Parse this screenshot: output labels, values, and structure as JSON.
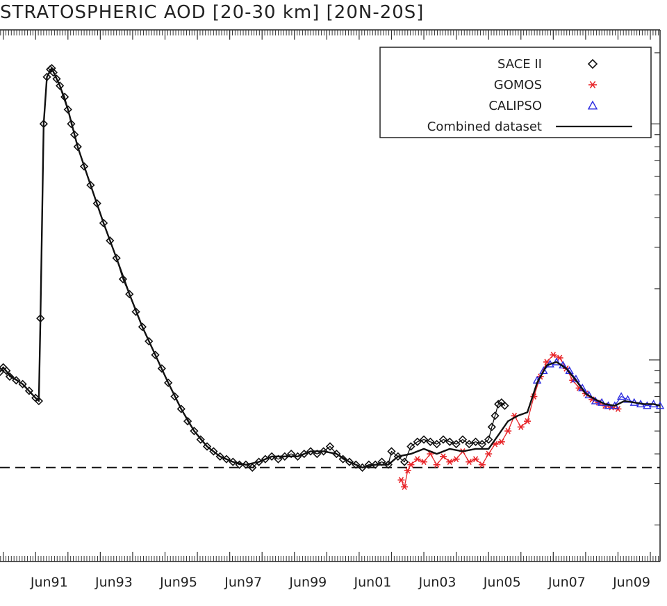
{
  "chart_data": {
    "type": "line",
    "title": "STRATOSPHERIC AOD [20-30 km] [20N-20S]",
    "x_tick_labels": [
      "Jun91",
      "Jun93",
      "Jun95",
      "Jun97",
      "Jun99",
      "Jun01",
      "Jun03",
      "Jun05",
      "Jun07",
      "Jun09"
    ],
    "x_tick_values": [
      1991.42,
      1993.42,
      1995.42,
      1997.42,
      1999.42,
      2001.42,
      2003.42,
      2005.42,
      2007.42,
      2009.42
    ],
    "xlim": [
      1989.9,
      2010.3
    ],
    "y_scale": "log",
    "ylim": [
      0.0014,
      0.25
    ],
    "baseline": 0.0035,
    "legend": {
      "position": "top-right",
      "entries": [
        {
          "label": "SACE II",
          "marker": "diamond",
          "color": "#111111"
        },
        {
          "label": "GOMOS",
          "marker": "asterisk",
          "color": "#e8262a"
        },
        {
          "label": "CALIPSO",
          "marker": "triangle",
          "color": "#2b2be0"
        },
        {
          "label": "Combined dataset",
          "marker": "line",
          "color": "#111111"
        }
      ]
    },
    "series": [
      {
        "name": "SACE II",
        "color": "#111111",
        "marker": "diamond",
        "x": [
          1989.9,
          1990.0,
          1990.1,
          1990.2,
          1990.4,
          1990.6,
          1990.8,
          1991.0,
          1991.1,
          1991.15,
          1991.25,
          1991.35,
          1991.45,
          1991.5,
          1991.55,
          1991.65,
          1991.75,
          1991.9,
          1992.0,
          1992.1,
          1992.2,
          1992.3,
          1992.5,
          1992.7,
          1992.9,
          1993.1,
          1993.3,
          1993.5,
          1993.7,
          1993.9,
          1994.1,
          1994.3,
          1994.5,
          1994.7,
          1994.9,
          1995.1,
          1995.3,
          1995.5,
          1995.7,
          1995.9,
          1996.1,
          1996.3,
          1996.5,
          1996.7,
          1996.9,
          1997.1,
          1997.3,
          1997.5,
          1997.7,
          1997.9,
          1998.1,
          1998.3,
          1998.5,
          1998.7,
          1998.9,
          1999.1,
          1999.3,
          1999.5,
          1999.7,
          1999.9,
          2000.1,
          2000.3,
          2000.5,
          2000.7,
          2000.9,
          2001.1,
          2001.3,
          2001.5,
          2001.7,
          2001.9,
          2002.0,
          2002.2,
          2002.4,
          2002.6,
          2002.8,
          2003.0,
          2003.2,
          2003.4,
          2003.6,
          2003.8,
          2004.0,
          2004.2,
          2004.4,
          2004.6,
          2004.8,
          2005.0,
          2005.1,
          2005.2,
          2005.3,
          2005.4,
          2005.5
        ],
        "y": [
          0.0089,
          0.0093,
          0.009,
          0.0085,
          0.0082,
          0.0079,
          0.0074,
          0.0069,
          0.0067,
          0.015,
          0.1,
          0.158,
          0.17,
          0.172,
          0.165,
          0.155,
          0.145,
          0.13,
          0.115,
          0.1,
          0.09,
          0.08,
          0.066,
          0.055,
          0.046,
          0.038,
          0.032,
          0.027,
          0.022,
          0.019,
          0.016,
          0.0138,
          0.012,
          0.0105,
          0.0092,
          0.008,
          0.007,
          0.0062,
          0.0055,
          0.005,
          0.0046,
          0.0043,
          0.0041,
          0.0039,
          0.0038,
          0.0037,
          0.0036,
          0.0036,
          0.0035,
          0.0037,
          0.0038,
          0.0039,
          0.0038,
          0.0039,
          0.004,
          0.0039,
          0.004,
          0.0041,
          0.004,
          0.0041,
          0.0043,
          0.004,
          0.0038,
          0.0037,
          0.0036,
          0.0035,
          0.0036,
          0.0036,
          0.0037,
          0.0036,
          0.0041,
          0.0039,
          0.0037,
          0.0043,
          0.0045,
          0.0046,
          0.0045,
          0.0044,
          0.0046,
          0.0045,
          0.0044,
          0.0046,
          0.0044,
          0.0045,
          0.0044,
          0.0046,
          0.0052,
          0.0058,
          0.0065,
          0.0066,
          0.0064
        ]
      },
      {
        "name": "GOMOS",
        "color": "#e8262a",
        "marker": "asterisk",
        "x": [
          2002.3,
          2002.4,
          2002.5,
          2002.6,
          2002.8,
          2003.0,
          2003.2,
          2003.4,
          2003.6,
          2003.8,
          2004.0,
          2004.2,
          2004.4,
          2004.6,
          2004.8,
          2005.0,
          2005.2,
          2005.4,
          2005.6,
          2005.8,
          2006.0,
          2006.2,
          2006.4,
          2006.6,
          2006.8,
          2007.0,
          2007.2,
          2007.4,
          2007.6,
          2007.8,
          2008.0,
          2008.2,
          2008.4,
          2008.6,
          2008.8,
          2009.0
        ],
        "y": [
          0.0031,
          0.0029,
          0.0034,
          0.0036,
          0.0038,
          0.0037,
          0.004,
          0.0036,
          0.0039,
          0.0037,
          0.0038,
          0.0041,
          0.0037,
          0.0038,
          0.0036,
          0.004,
          0.0044,
          0.0045,
          0.005,
          0.0058,
          0.0052,
          0.0055,
          0.007,
          0.0085,
          0.0098,
          0.0105,
          0.0102,
          0.0092,
          0.0082,
          0.0076,
          0.0072,
          0.0068,
          0.0066,
          0.0064,
          0.0063,
          0.0062
        ]
      },
      {
        "name": "CALIPSO",
        "color": "#2b2be0",
        "marker": "triangle",
        "x": [
          2006.5,
          2006.7,
          2006.9,
          2007.1,
          2007.3,
          2007.5,
          2007.7,
          2007.9,
          2008.1,
          2008.3,
          2008.5,
          2008.7,
          2008.9,
          2009.1,
          2009.3,
          2009.5,
          2009.7,
          2009.9,
          2010.1,
          2010.3
        ],
        "y": [
          0.0082,
          0.009,
          0.0096,
          0.0098,
          0.0095,
          0.009,
          0.0083,
          0.0076,
          0.0071,
          0.0067,
          0.0066,
          0.0064,
          0.0064,
          0.007,
          0.0068,
          0.0066,
          0.0065,
          0.0064,
          0.0065,
          0.0064
        ]
      },
      {
        "name": "Combined dataset",
        "color": "#111111",
        "marker": "line",
        "x": [
          1989.9,
          1990.0,
          1990.2,
          1990.6,
          1991.0,
          1991.1,
          1991.15,
          1991.25,
          1991.35,
          1991.5,
          1991.75,
          1992.0,
          1992.3,
          1992.7,
          1993.1,
          1993.5,
          1993.9,
          1994.3,
          1994.7,
          1995.1,
          1995.5,
          1995.9,
          1996.3,
          1996.7,
          1997.1,
          1997.5,
          1997.9,
          1998.3,
          1998.7,
          1999.1,
          1999.5,
          1999.9,
          2000.3,
          2000.7,
          2001.1,
          2001.5,
          2001.9,
          2002.2,
          2002.6,
          2003.0,
          2003.4,
          2003.8,
          2004.2,
          2004.6,
          2005.0,
          2005.3,
          2005.6,
          2005.9,
          2006.2,
          2006.5,
          2006.8,
          2007.1,
          2007.4,
          2007.7,
          2008.0,
          2008.3,
          2008.6,
          2008.9,
          2009.2,
          2009.5,
          2009.8,
          2010.1,
          2010.3
        ],
        "y": [
          0.0089,
          0.0093,
          0.0086,
          0.0079,
          0.0069,
          0.0067,
          0.015,
          0.1,
          0.158,
          0.172,
          0.145,
          0.115,
          0.08,
          0.055,
          0.038,
          0.027,
          0.019,
          0.0138,
          0.0105,
          0.008,
          0.0062,
          0.005,
          0.0043,
          0.0039,
          0.0037,
          0.0036,
          0.0037,
          0.0039,
          0.0039,
          0.0039,
          0.0041,
          0.0041,
          0.004,
          0.0037,
          0.0035,
          0.0036,
          0.0036,
          0.0039,
          0.004,
          0.0042,
          0.004,
          0.0042,
          0.0041,
          0.0042,
          0.0042,
          0.0048,
          0.0055,
          0.0058,
          0.006,
          0.008,
          0.0095,
          0.0098,
          0.0092,
          0.0082,
          0.0072,
          0.0068,
          0.0065,
          0.0064,
          0.0067,
          0.0066,
          0.0065,
          0.0065,
          0.0064
        ]
      }
    ]
  }
}
